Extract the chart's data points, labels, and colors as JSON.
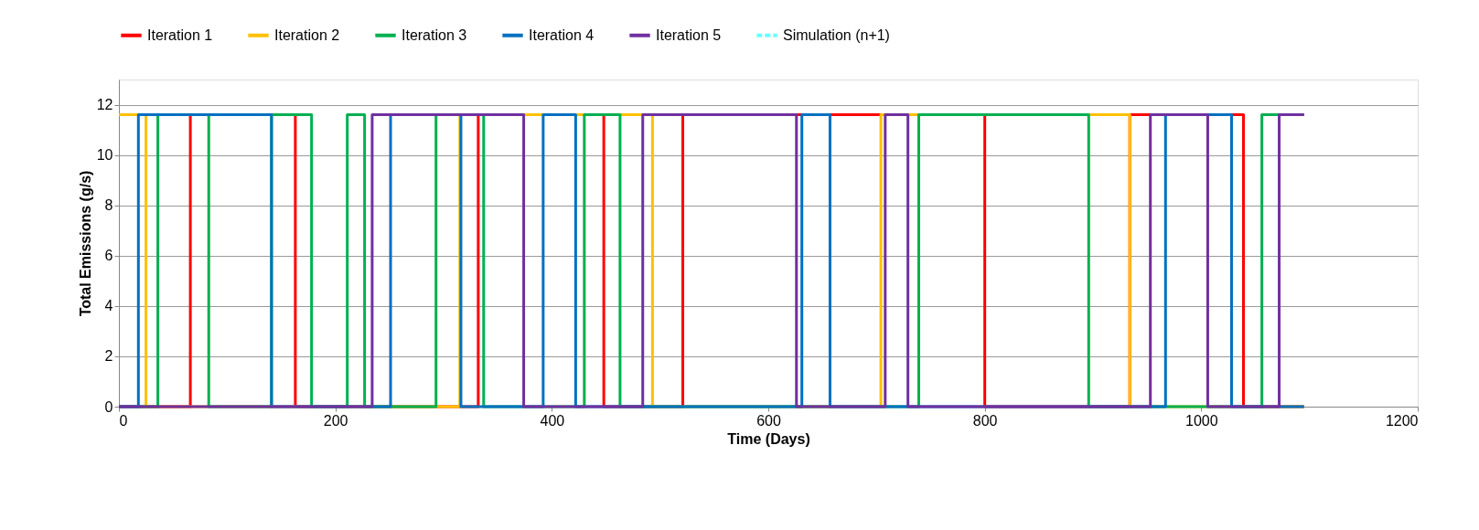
{
  "chart_data": {
    "type": "line",
    "xlabel": "Time (Days)",
    "ylabel": "Total Emissions (g/s)",
    "xlim": [
      0,
      1200
    ],
    "xticks": [
      0,
      200,
      400,
      600,
      800,
      1000,
      1200
    ],
    "ylim": [
      0,
      13
    ],
    "yticks": [
      0,
      2,
      4,
      6,
      8,
      10,
      12
    ],
    "grid": "y",
    "legend": "top",
    "marker": "none",
    "line_style": "solid",
    "series": [
      {
        "name": "Iteration 1",
        "color": "#ff0000",
        "x": [
          0,
          66,
          66,
          163,
          163,
          332,
          332,
          448,
          448,
          521,
          521,
          800,
          800,
          934,
          934,
          1039,
          1039,
          1095
        ],
        "values": [
          0,
          0,
          11.6,
          11.6,
          0,
          0,
          11.6,
          11.6,
          0,
          0,
          11.6,
          11.6,
          0,
          0,
          11.6,
          11.6,
          0,
          0
        ]
      },
      {
        "name": "Iteration 2",
        "color": "#ffc000",
        "x": [
          0,
          25,
          25,
          315,
          315,
          493,
          493,
          704,
          704,
          934,
          934,
          1095
        ],
        "values": [
          11.6,
          11.6,
          0,
          0,
          11.6,
          11.6,
          0,
          0,
          11.6,
          11.6,
          0,
          0
        ]
      },
      {
        "name": "Iteration 3",
        "color": "#00b050",
        "x": [
          0,
          36,
          36,
          83,
          83,
          141,
          141,
          178,
          178,
          211,
          211,
          227,
          227,
          293,
          293,
          337,
          337,
          430,
          430,
          463,
          463,
          739,
          739,
          896,
          896,
          1056,
          1056,
          1095
        ],
        "values": [
          0,
          0,
          11.6,
          11.6,
          0,
          0,
          11.6,
          11.6,
          0,
          0,
          11.6,
          11.6,
          0,
          0,
          11.6,
          11.6,
          0,
          0,
          11.6,
          11.6,
          0,
          0,
          11.6,
          11.6,
          0,
          0,
          11.6,
          11.6
        ]
      },
      {
        "name": "Iteration 4",
        "color": "#0070c0",
        "x": [
          0,
          18,
          18,
          141,
          141,
          251,
          251,
          316,
          316,
          392,
          392,
          422,
          422,
          631,
          631,
          657,
          657,
          967,
          967,
          1028,
          1028,
          1095
        ],
        "values": [
          0,
          0,
          11.6,
          11.6,
          0,
          0,
          11.6,
          11.6,
          0,
          0,
          11.6,
          11.6,
          0,
          0,
          11.6,
          11.6,
          0,
          0,
          11.6,
          11.6,
          0,
          0
        ]
      },
      {
        "name": "Iteration 5",
        "color": "#7030a0",
        "x": [
          0,
          234,
          234,
          374,
          374,
          484,
          484,
          626,
          626,
          708,
          708,
          729,
          729,
          953,
          953,
          1006,
          1006,
          1072,
          1072,
          1095
        ],
        "values": [
          0,
          0,
          11.6,
          11.6,
          0,
          0,
          11.6,
          11.6,
          0,
          0,
          11.6,
          11.6,
          0,
          0,
          11.6,
          11.6,
          0,
          0,
          11.6,
          11.6
        ]
      },
      {
        "name": "Simulation (n+1)",
        "color": "#66ffff",
        "line_style": "dashed"
      }
    ]
  }
}
